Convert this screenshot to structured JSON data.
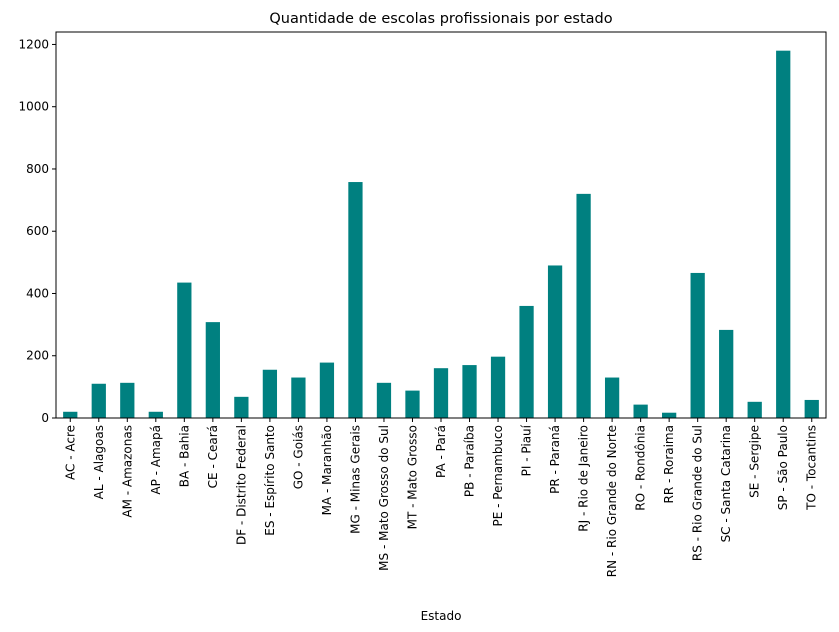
{
  "chart_data": {
    "type": "bar",
    "title": "Quantidade de escolas profissionais por estado",
    "xlabel": "Estado",
    "ylabel": "",
    "ylim": [
      0,
      1240
    ],
    "yticks": [
      0,
      200,
      400,
      600,
      800,
      1000,
      1200
    ],
    "grid": false,
    "bar_color": "#008080",
    "categories": [
      "AC - Acre",
      "AL - Alagoas",
      "AM - Amazonas",
      "AP - Amapá",
      "BA - Bahia",
      "CE - Ceará",
      "DF - Distrito Federal",
      "ES - Espírito Santo",
      "GO - Goiás",
      "MA - Maranhão",
      "MG - Minas Gerais",
      "MS - Mato Grosso do Sul",
      "MT - Mato Grosso",
      "PA - Pará",
      "PB - Paraíba",
      "PE - Pernambuco",
      "PI - Piauí",
      "PR - Paraná",
      "RJ - Rio de Janeiro",
      "RN - Rio Grande do Norte",
      "RO - Rondônia",
      "RR - Roraima",
      "RS - Rio Grande do Sul",
      "SC - Santa Catarina",
      "SE - Sergipe",
      "SP - São Paulo",
      "TO - Tocantins"
    ],
    "values": [
      20,
      110,
      113,
      20,
      435,
      308,
      68,
      155,
      130,
      178,
      758,
      113,
      88,
      160,
      170,
      197,
      360,
      490,
      720,
      130,
      43,
      17,
      466,
      283,
      52,
      1180,
      58
    ]
  }
}
